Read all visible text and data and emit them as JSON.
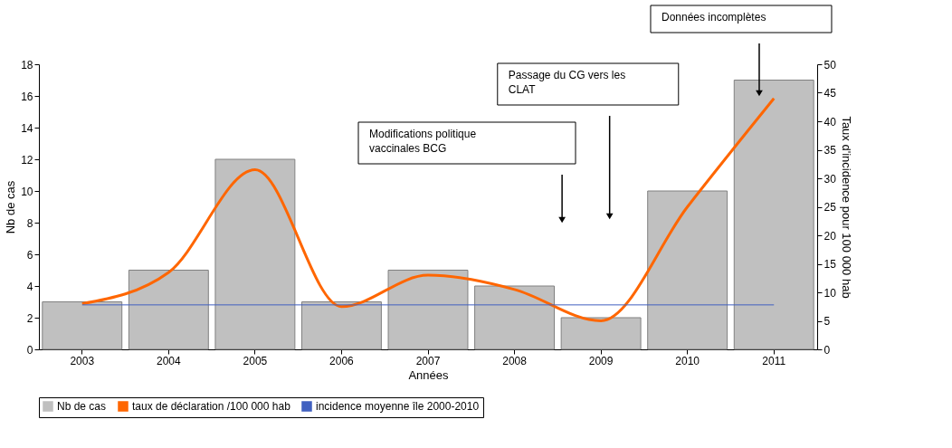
{
  "chart_data": {
    "type": "bar",
    "categories": [
      "2003",
      "2004",
      "2005",
      "2006",
      "2007",
      "2008",
      "2009",
      "2010",
      "2011"
    ],
    "xlabel": "Années",
    "ylabel": "Nb de cas",
    "y2label": "Taux d'incidence pour 100 000 hab",
    "series": [
      {
        "name": "Nb de cas",
        "color": "#c0c0c0",
        "values": [
          3,
          5,
          12,
          3,
          5,
          4,
          2,
          10,
          17
        ]
      },
      {
        "name": "taux de déclaration /100 000 hab",
        "color": "#ff6600",
        "type": "line",
        "axis": "y2",
        "values": [
          8,
          13.5,
          31.5,
          7.5,
          13,
          10.5,
          5,
          25,
          44
        ]
      }
    ],
    "ylim": [
      0,
      18
    ],
    "yticks": [
      0,
      2,
      4,
      6,
      8,
      10,
      12,
      14,
      16,
      18
    ],
    "y2lim": [
      0,
      50
    ],
    "y2ticks": [
      0,
      5,
      10,
      15,
      20,
      25,
      30,
      35,
      40,
      45,
      50
    ],
    "ref_lines": [
      {
        "axis": "y2",
        "value": 7.8,
        "label": "incidence moyenne île 2000-2010",
        "color": "#4060c0"
      }
    ],
    "annotations": [
      "Modifications politique vaccinales BCG",
      "Passage du CG vers les CLAT",
      "Données incomplètes"
    ],
    "legend": "bottom",
    "grid": false
  }
}
